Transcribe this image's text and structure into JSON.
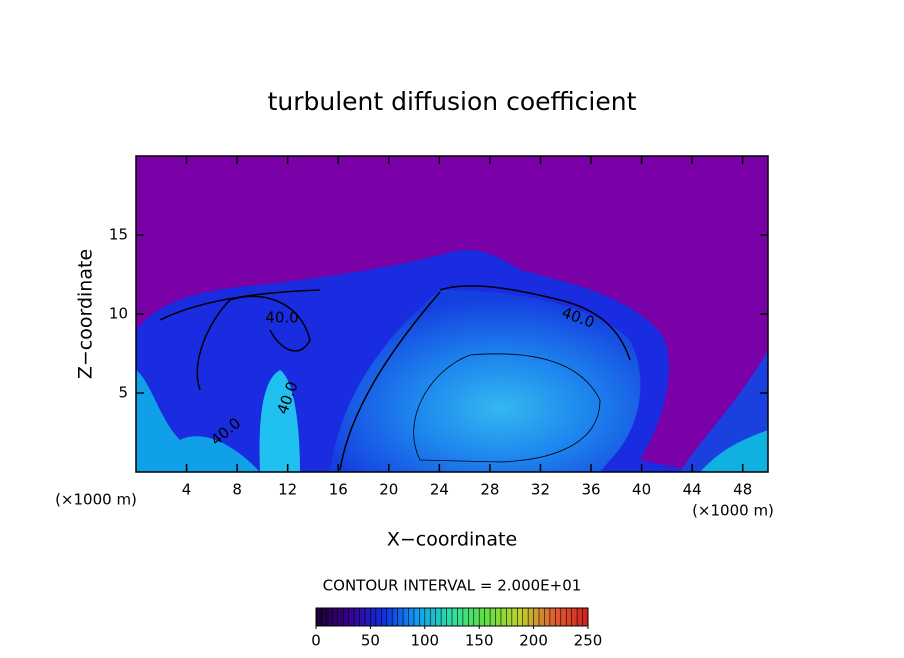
{
  "chart_data": {
    "type": "contour",
    "title": "turbulent diffusion coefficient",
    "x_label": "X−coordinate",
    "y_label": "Z−coordinate",
    "x_unit": "(×1000 m)",
    "y_unit": "(×1000 m)",
    "xlim": [
      0,
      50
    ],
    "ylim": [
      0,
      20
    ],
    "xticks": [
      4,
      8,
      12,
      16,
      20,
      24,
      28,
      32,
      36,
      40,
      44,
      48
    ],
    "yticks": [
      5,
      10,
      15
    ],
    "annotations": [
      "40.0",
      "40.0",
      "40.0",
      "40.0"
    ],
    "colorbar": {
      "label": "CONTOUR INTERVAL = 2.000E+01",
      "lim": [
        0,
        250
      ],
      "ticks": [
        0,
        50,
        100,
        150,
        200,
        250
      ],
      "colors": [
        "#1a0030",
        "#3a0090",
        "#1030e0",
        "#10a0f0",
        "#30e0a0",
        "#60e040",
        "#c0d030",
        "#e06030",
        "#d02020"
      ]
    }
  }
}
